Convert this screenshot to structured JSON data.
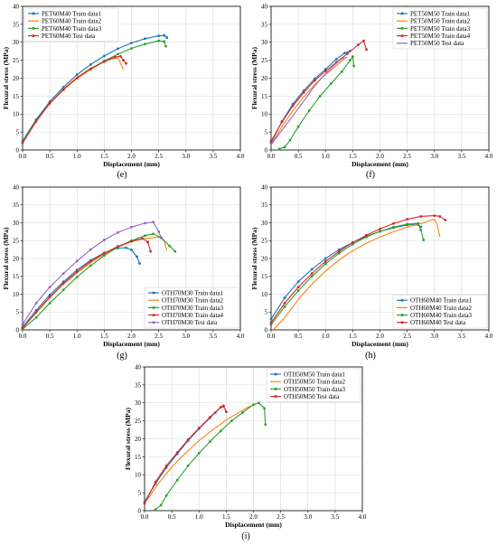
{
  "chart_data": [
    {
      "panel_label": "(e)",
      "type": "line",
      "xlabel": "Displacement (mm)",
      "ylabel": "Flexural stress (MPa)",
      "xlim": [
        0,
        4.0
      ],
      "ylim": [
        0,
        40
      ],
      "xticks": [
        "0.0",
        "0.5",
        "1.0",
        "1.5",
        "2.0",
        "2.5",
        "3.0",
        "3.5",
        "4.0"
      ],
      "yticks": [
        "0",
        "5",
        "10",
        "15",
        "20",
        "25",
        "30",
        "35",
        "40"
      ],
      "grid": true,
      "legend_position": "top-left",
      "series": [
        {
          "name": "PET60M40 Train data1",
          "color": "#1f77b4",
          "marker": "dot",
          "x": [
            0.0,
            0.25,
            0.5,
            0.75,
            1.0,
            1.25,
            1.5,
            1.75,
            2.0,
            2.25,
            2.5,
            2.6,
            2.65
          ],
          "y": [
            2.5,
            8.5,
            13.5,
            17.5,
            21.0,
            23.8,
            26.2,
            28.2,
            29.8,
            31.0,
            31.8,
            31.9,
            31.3
          ]
        },
        {
          "name": "PET60M40 Train data2",
          "color": "#ff7f0e",
          "marker": "none",
          "x": [
            0.0,
            0.25,
            0.5,
            0.75,
            1.0,
            1.25,
            1.5,
            1.65,
            1.75,
            1.8,
            1.85
          ],
          "y": [
            2.0,
            8.0,
            13.0,
            17.0,
            20.3,
            22.8,
            24.6,
            25.4,
            25.6,
            24.2,
            22.4
          ]
        },
        {
          "name": "PET60M40 Train data3",
          "color": "#2ca02c",
          "marker": "dot",
          "x": [
            0.0,
            0.25,
            0.5,
            0.75,
            1.0,
            1.25,
            1.5,
            1.75,
            2.0,
            2.25,
            2.5,
            2.6,
            2.63
          ],
          "y": [
            2.2,
            8.2,
            13.0,
            16.8,
            20.0,
            22.6,
            24.8,
            26.7,
            28.3,
            29.5,
            30.4,
            30.2,
            28.9
          ]
        },
        {
          "name": "PET60M40 Test data",
          "color": "#d62728",
          "marker": "dot",
          "x": [
            0.0,
            0.25,
            0.5,
            0.75,
            1.0,
            1.25,
            1.5,
            1.7,
            1.8,
            1.85,
            1.9
          ],
          "y": [
            2.0,
            8.0,
            13.0,
            16.8,
            20.0,
            22.5,
            24.6,
            25.9,
            26.1,
            25.0,
            24.1
          ]
        }
      ]
    },
    {
      "panel_label": "(f)",
      "type": "line",
      "xlabel": "Displacement (mm)",
      "ylabel": "Flexural stress (MPa)",
      "xlim": [
        0,
        4.0
      ],
      "ylim": [
        0,
        40
      ],
      "xticks": [
        "0.0",
        "0.5",
        "1.0",
        "1.5",
        "2.0",
        "2.5",
        "3.0",
        "3.5",
        "4.0"
      ],
      "yticks": [
        "0",
        "5",
        "10",
        "15",
        "20",
        "25",
        "30",
        "35",
        "40"
      ],
      "grid": true,
      "legend_position": "top-right",
      "series": [
        {
          "name": "PET50M50 Train data1",
          "color": "#1f77b4",
          "marker": "dot",
          "x": [
            0.0,
            0.2,
            0.4,
            0.6,
            0.8,
            1.0,
            1.2,
            1.35,
            1.45
          ],
          "y": [
            2.0,
            8.0,
            12.8,
            16.5,
            19.8,
            22.5,
            25.3,
            27.0,
            27.6
          ]
        },
        {
          "name": "PET50M50 Train data2",
          "color": "#ff7f0e",
          "marker": "none",
          "x": [
            0.0,
            0.2,
            0.4,
            0.6,
            0.8,
            1.0,
            1.2,
            1.3,
            1.35
          ],
          "y": [
            1.5,
            6.5,
            11.0,
            14.8,
            18.2,
            21.0,
            23.5,
            24.8,
            25.4
          ]
        },
        {
          "name": "PET50M50 Train data3",
          "color": "#2ca02c",
          "marker": "dot",
          "x": [
            0.15,
            0.25,
            0.35,
            0.5,
            0.7,
            0.9,
            1.1,
            1.3,
            1.45,
            1.5,
            1.52
          ],
          "y": [
            0.3,
            0.8,
            2.8,
            6.5,
            11.0,
            15.0,
            18.5,
            21.8,
            25.0,
            26.0,
            23.4
          ]
        },
        {
          "name": "PET50M50 Train data4",
          "color": "#d62728",
          "marker": "dot",
          "x": [
            0.0,
            0.2,
            0.4,
            0.6,
            0.8,
            1.0,
            1.2,
            1.4,
            1.6,
            1.7,
            1.75
          ],
          "y": [
            2.5,
            7.8,
            12.3,
            16.0,
            19.3,
            22.0,
            24.4,
            26.8,
            29.3,
            30.4,
            28.0
          ]
        },
        {
          "name": "PET50M50 Test data",
          "color": "#9467bd",
          "marker": "none",
          "x": [
            0.0,
            0.2,
            0.4,
            0.6,
            0.8,
            1.0,
            1.2,
            1.3,
            1.4
          ],
          "y": [
            1.5,
            5.5,
            9.5,
            13.6,
            17.8,
            21.3,
            24.2,
            25.4,
            25.8
          ]
        }
      ]
    },
    {
      "panel_label": "(g)",
      "type": "line",
      "xlabel": "Displacement (mm)",
      "ylabel": "Flexural stress (MPa)",
      "xlim": [
        0,
        4.0
      ],
      "ylim": [
        0,
        40
      ],
      "xticks": [
        "0.0",
        "0.5",
        "1.0",
        "1.5",
        "2.0",
        "2.5",
        "3.0",
        "3.5",
        "4.0"
      ],
      "yticks": [
        "0",
        "5",
        "10",
        "15",
        "20",
        "25",
        "30",
        "35",
        "40"
      ],
      "grid": true,
      "legend_position": "bottom-right",
      "series": [
        {
          "name": "OTH70M30 Train data1",
          "color": "#1f77b4",
          "marker": "dot",
          "x": [
            0.0,
            0.25,
            0.5,
            0.75,
            1.0,
            1.25,
            1.5,
            1.75,
            1.9,
            2.0,
            2.1,
            2.15
          ],
          "y": [
            0.8,
            5.5,
            9.8,
            13.5,
            16.8,
            19.5,
            21.6,
            22.9,
            23.0,
            22.4,
            20.5,
            18.6
          ]
        },
        {
          "name": "OTH70M30 Train data2",
          "color": "#ff7f0e",
          "marker": "none",
          "x": [
            0.0,
            0.25,
            0.5,
            0.75,
            1.0,
            1.25,
            1.5,
            1.75,
            2.0,
            2.25,
            2.5,
            2.6,
            2.65
          ],
          "y": [
            0.5,
            4.8,
            9.0,
            12.8,
            16.0,
            18.8,
            21.2,
            23.2,
            24.7,
            25.6,
            26.0,
            25.0,
            22.2
          ]
        },
        {
          "name": "OTH70M30 Train data3",
          "color": "#2ca02c",
          "marker": "dot",
          "x": [
            0.0,
            0.25,
            0.5,
            0.75,
            1.0,
            1.25,
            1.5,
            1.75,
            2.0,
            2.25,
            2.4,
            2.55,
            2.7,
            2.8
          ],
          "y": [
            0.2,
            3.5,
            7.5,
            11.2,
            14.8,
            18.0,
            20.8,
            23.2,
            25.0,
            26.4,
            26.9,
            25.8,
            23.5,
            22.0
          ]
        },
        {
          "name": "OTH70M30 Train data4",
          "color": "#d62728",
          "marker": "dot",
          "x": [
            0.0,
            0.25,
            0.5,
            0.75,
            1.0,
            1.25,
            1.5,
            1.75,
            2.0,
            2.2,
            2.3,
            2.35
          ],
          "y": [
            0.5,
            5.0,
            9.2,
            13.0,
            16.3,
            19.2,
            21.5,
            23.4,
            24.8,
            25.6,
            24.6,
            22.0
          ]
        },
        {
          "name": "OTH70M30 Test data",
          "color": "#9467bd",
          "marker": "dot",
          "x": [
            0.0,
            0.25,
            0.5,
            0.75,
            1.0,
            1.25,
            1.5,
            1.75,
            2.0,
            2.25,
            2.4,
            2.5,
            2.55
          ],
          "y": [
            1.5,
            7.5,
            12.0,
            15.8,
            19.3,
            22.5,
            25.2,
            27.3,
            28.8,
            29.9,
            30.2,
            27.5,
            25.8
          ]
        }
      ]
    },
    {
      "panel_label": "(h)",
      "type": "line",
      "xlabel": "Displacement (mm)",
      "ylabel": "Flexural stress (MPa)",
      "xlim": [
        0,
        4.0
      ],
      "ylim": [
        0,
        40
      ],
      "xticks": [
        "0.0",
        "0.5",
        "1.0",
        "1.5",
        "2.0",
        "2.5",
        "3.0",
        "3.5",
        "4.0"
      ],
      "yticks": [
        "0",
        "5",
        "10",
        "15",
        "20",
        "25",
        "30",
        "35",
        "40"
      ],
      "grid": true,
      "legend_position": "bottom-right",
      "series": [
        {
          "name": "OTH60M40 Train data1",
          "color": "#1f77b4",
          "marker": "dot",
          "x": [
            0.0,
            0.25,
            0.5,
            0.75,
            1.0,
            1.25,
            1.5,
            1.75,
            2.0,
            2.25,
            2.5,
            2.65,
            2.75
          ],
          "y": [
            3.0,
            9.0,
            13.5,
            17.0,
            20.0,
            22.5,
            24.5,
            26.2,
            27.6,
            28.6,
            29.4,
            29.6,
            28.9
          ]
        },
        {
          "name": "OTH60M40 Train data2",
          "color": "#ff7f0e",
          "marker": "none",
          "x": [
            0.05,
            0.25,
            0.5,
            0.75,
            1.0,
            1.25,
            1.5,
            1.75,
            2.0,
            2.25,
            2.5,
            2.75,
            3.0,
            3.05,
            3.1
          ],
          "y": [
            0.2,
            3.5,
            8.5,
            12.8,
            16.5,
            19.6,
            22.2,
            24.3,
            26.0,
            27.5,
            28.8,
            29.8,
            31.0,
            29.5,
            26.0
          ]
        },
        {
          "name": "OTH60M40 Train data3",
          "color": "#2ca02c",
          "marker": "dot",
          "x": [
            0.0,
            0.25,
            0.5,
            0.75,
            1.0,
            1.25,
            1.5,
            1.75,
            2.0,
            2.25,
            2.5,
            2.7,
            2.75,
            2.8
          ],
          "y": [
            1.5,
            6.5,
            11.0,
            15.0,
            18.5,
            21.5,
            24.0,
            26.0,
            27.6,
            28.8,
            29.6,
            29.8,
            28.0,
            25.2
          ]
        },
        {
          "name": "OTH60M40 Test data",
          "color": "#d62728",
          "marker": "dot",
          "x": [
            0.0,
            0.25,
            0.5,
            0.75,
            1.0,
            1.25,
            1.5,
            1.75,
            2.0,
            2.25,
            2.5,
            2.75,
            3.0,
            3.1,
            3.2
          ],
          "y": [
            2.0,
            7.5,
            12.0,
            15.8,
            19.2,
            22.0,
            24.5,
            26.5,
            28.3,
            29.8,
            31.0,
            31.8,
            32.0,
            31.8,
            30.8
          ]
        }
      ]
    },
    {
      "panel_label": "(i)",
      "type": "line",
      "xlabel": "Displacement (mm)",
      "ylabel": "Flexural stress (MPa)",
      "xlim": [
        0,
        4.0
      ],
      "ylim": [
        0,
        40
      ],
      "xticks": [
        "0.0",
        "0.5",
        "1.0",
        "1.5",
        "2.0",
        "2.5",
        "3.0",
        "3.5",
        "4.0"
      ],
      "yticks": [
        "0",
        "5",
        "10",
        "15",
        "20",
        "25",
        "30",
        "35",
        "40"
      ],
      "grid": true,
      "legend_position": "top-right",
      "series": [
        {
          "name": "OTH50M50 Train data1",
          "color": "#1f77b4",
          "marker": "dot",
          "x": [
            0.0,
            0.2,
            0.4,
            0.6,
            0.8,
            1.0,
            1.2,
            1.3,
            1.4,
            1.45
          ],
          "y": [
            2.5,
            7.5,
            12.0,
            15.8,
            19.5,
            22.8,
            25.8,
            27.3,
            28.8,
            29.0
          ]
        },
        {
          "name": "OTH50M50 Train data2",
          "color": "#ff7f0e",
          "marker": "none",
          "x": [
            0.0,
            0.25,
            0.5,
            0.75,
            1.0,
            1.25,
            1.5,
            1.75,
            1.9,
            2.0
          ],
          "y": [
            2.0,
            7.5,
            12.2,
            16.0,
            19.5,
            22.5,
            25.2,
            27.5,
            28.8,
            29.3
          ]
        },
        {
          "name": "OTH50M50 Train data3",
          "color": "#2ca02c",
          "marker": "dot",
          "x": [
            0.2,
            0.3,
            0.4,
            0.6,
            0.8,
            1.0,
            1.2,
            1.4,
            1.6,
            1.8,
            2.0,
            2.1,
            2.2,
            2.22
          ],
          "y": [
            0.3,
            1.5,
            4.2,
            8.5,
            12.5,
            16.0,
            19.2,
            22.2,
            25.0,
            27.3,
            29.5,
            30.0,
            28.5,
            24.0
          ]
        },
        {
          "name": "OTH50M50 Test data",
          "color": "#d62728",
          "marker": "dot",
          "x": [
            0.0,
            0.2,
            0.4,
            0.6,
            0.8,
            1.0,
            1.2,
            1.4,
            1.45,
            1.5
          ],
          "y": [
            2.0,
            8.0,
            12.5,
            16.2,
            19.8,
            23.0,
            26.0,
            28.8,
            29.2,
            27.5
          ]
        }
      ]
    }
  ]
}
